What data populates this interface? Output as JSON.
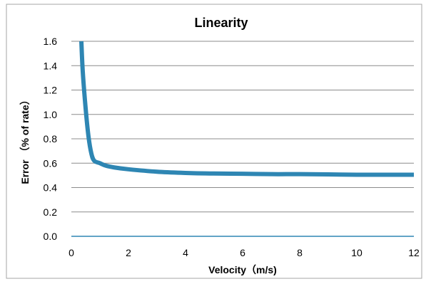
{
  "chart_data": {
    "type": "line",
    "title": "Linearity",
    "xlabel": "Velocity（m/s)",
    "ylabel": "Error （% of rate）",
    "xlim": [
      0,
      12
    ],
    "ylim": [
      0,
      1.6
    ],
    "x_ticks": [
      "0",
      "2",
      "4",
      "6",
      "8",
      "10",
      "12"
    ],
    "y_ticks": [
      "0.0",
      "0.2",
      "0.4",
      "0.6",
      "0.8",
      "1.0",
      "1.2",
      "1.4",
      "1.6"
    ],
    "grid": "horizontal",
    "legend": "none",
    "series": [
      {
        "color": "#2e86b3",
        "x": [
          0.35,
          0.4,
          0.5,
          0.6,
          0.7,
          0.8,
          1.0,
          1.2,
          1.5,
          2.0,
          3.0,
          4.0,
          5.0,
          6.0,
          7.0,
          8.0,
          9.0,
          10.0,
          11.0,
          12.0
        ],
        "y": [
          1.6,
          1.35,
          1.05,
          0.82,
          0.68,
          0.62,
          0.6,
          0.58,
          0.565,
          0.55,
          0.53,
          0.52,
          0.515,
          0.513,
          0.51,
          0.51,
          0.508,
          0.505,
          0.505,
          0.505
        ]
      }
    ]
  }
}
